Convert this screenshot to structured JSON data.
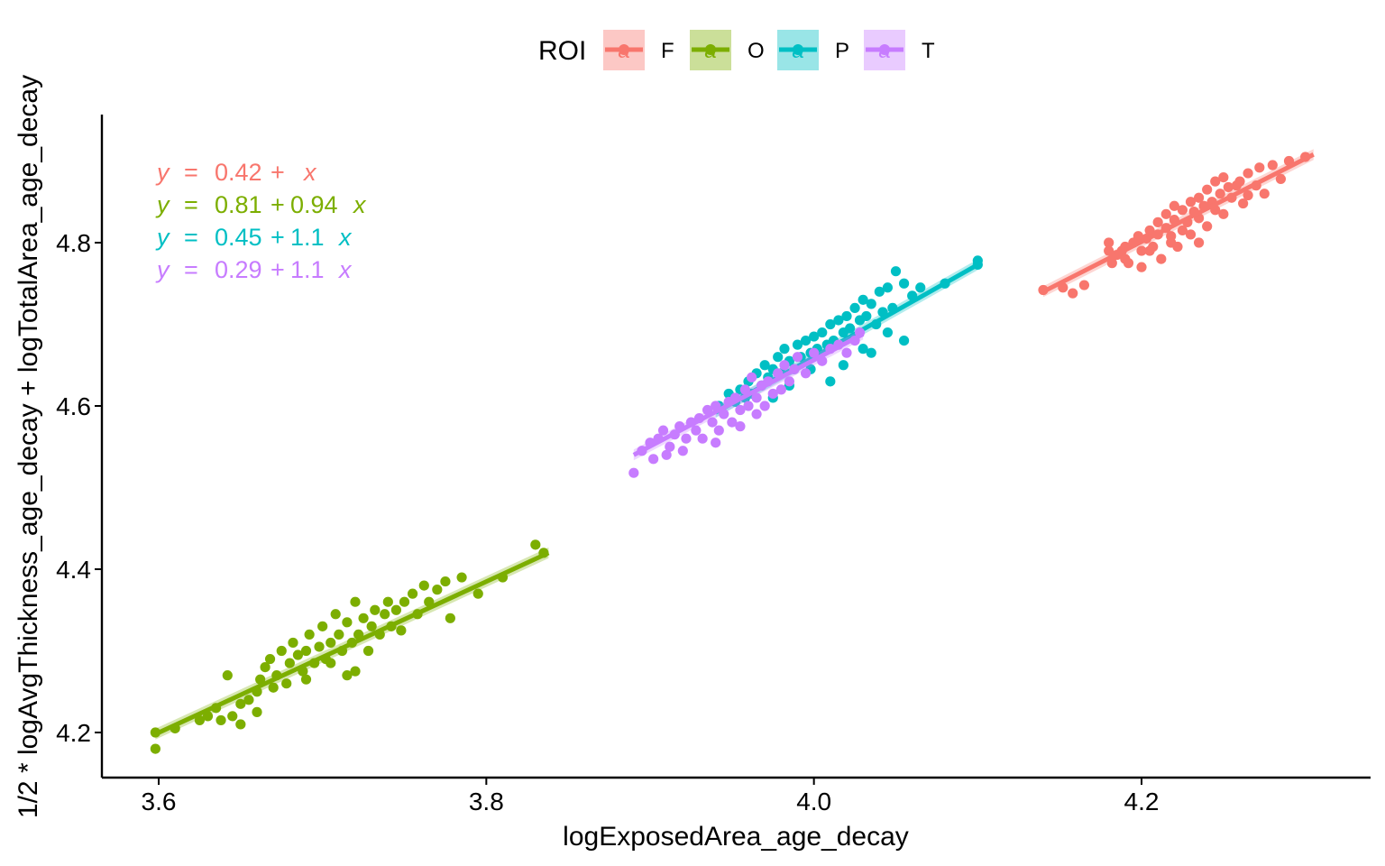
{
  "chart_data": {
    "type": "scatter",
    "title": "",
    "xlabel": "logExposedArea_age_decay",
    "ylabel": "1/2 * logAvgThickness_age_decay + logTotalArea_age_decay",
    "xlim": [
      3.56,
      4.34
    ],
    "ylim": [
      4.17,
      4.955
    ],
    "xticks": [
      "3.6",
      "3.8",
      "4.0",
      "4.2"
    ],
    "xtick_values": [
      3.6,
      3.8,
      4.0,
      4.2
    ],
    "yticks": [
      "4.2",
      "4.4",
      "4.6",
      "4.8"
    ],
    "ytick_values": [
      4.2,
      4.4,
      4.6,
      4.8
    ],
    "grid": false,
    "legend": {
      "title": "ROI",
      "position": "top",
      "key_glyph": "a",
      "entries": [
        "F",
        "O",
        "P",
        "T"
      ]
    },
    "equations": [
      {
        "roi": "F",
        "lhs": "y",
        "eq": "=",
        "intercept": "0.42",
        "plus": "+",
        "slope": "",
        "var": "x",
        "color": "#F8766D"
      },
      {
        "roi": "O",
        "lhs": "y",
        "eq": "=",
        "intercept": "0.81",
        "plus": "+",
        "slope": "0.94",
        "var": "x",
        "color": "#7CAE00"
      },
      {
        "roi": "P",
        "lhs": "y",
        "eq": "=",
        "intercept": "0.45",
        "plus": "+",
        "slope": "1.1",
        "var": "x",
        "color": "#00BFC4"
      },
      {
        "roi": "T",
        "lhs": "y",
        "eq": "=",
        "intercept": "0.29",
        "plus": "+",
        "slope": "1.1",
        "var": "x",
        "color": "#C77CFF"
      }
    ],
    "series": [
      {
        "name": "F",
        "color": "#F8766D",
        "fit": {
          "x0": 4.14,
          "y0": 4.74,
          "x1": 4.305,
          "y1": 4.908
        },
        "points": [
          [
            4.14,
            4.742
          ],
          [
            4.152,
            4.745
          ],
          [
            4.158,
            4.738
          ],
          [
            4.165,
            4.748
          ],
          [
            4.18,
            4.79
          ],
          [
            4.18,
            4.8
          ],
          [
            4.182,
            4.775
          ],
          [
            4.185,
            4.785
          ],
          [
            4.188,
            4.79
          ],
          [
            4.19,
            4.78
          ],
          [
            4.192,
            4.775
          ],
          [
            4.195,
            4.8
          ],
          [
            4.198,
            4.808
          ],
          [
            4.2,
            4.79
          ],
          [
            4.2,
            4.77
          ],
          [
            4.203,
            4.805
          ],
          [
            4.205,
            4.815
          ],
          [
            4.207,
            4.795
          ],
          [
            4.21,
            4.81
          ],
          [
            4.21,
            4.825
          ],
          [
            4.212,
            4.78
          ],
          [
            4.215,
            4.818
          ],
          [
            4.215,
            4.835
          ],
          [
            4.218,
            4.8
          ],
          [
            4.22,
            4.828
          ],
          [
            4.22,
            4.845
          ],
          [
            4.222,
            4.795
          ],
          [
            4.225,
            4.815
          ],
          [
            4.225,
            4.84
          ],
          [
            4.228,
            4.825
          ],
          [
            4.23,
            4.85
          ],
          [
            4.23,
            4.81
          ],
          [
            4.232,
            4.838
          ],
          [
            4.235,
            4.855
          ],
          [
            4.235,
            4.83
          ],
          [
            4.238,
            4.845
          ],
          [
            4.24,
            4.865
          ],
          [
            4.24,
            4.82
          ],
          [
            4.243,
            4.85
          ],
          [
            4.245,
            4.875
          ],
          [
            4.245,
            4.84
          ],
          [
            4.248,
            4.86
          ],
          [
            4.25,
            4.88
          ],
          [
            4.25,
            4.835
          ],
          [
            4.253,
            4.868
          ],
          [
            4.255,
            4.855
          ],
          [
            4.258,
            4.87
          ],
          [
            4.26,
            4.875
          ],
          [
            4.262,
            4.848
          ],
          [
            4.265,
            4.885
          ],
          [
            4.27,
            4.87
          ],
          [
            4.272,
            4.892
          ],
          [
            4.275,
            4.86
          ],
          [
            4.28,
            4.895
          ],
          [
            4.285,
            4.878
          ],
          [
            4.29,
            4.9
          ],
          [
            4.3,
            4.905
          ],
          [
            4.265,
            4.858
          ],
          [
            4.235,
            4.8
          ],
          [
            4.218,
            4.808
          ],
          [
            4.205,
            4.79
          ],
          [
            4.19,
            4.795
          ]
        ]
      },
      {
        "name": "O",
        "color": "#7CAE00",
        "fit": {
          "x0": 3.598,
          "y0": 4.198,
          "x1": 3.838,
          "y1": 4.42
        },
        "points": [
          [
            3.598,
            4.2
          ],
          [
            3.598,
            4.18
          ],
          [
            3.61,
            4.205
          ],
          [
            3.625,
            4.215
          ],
          [
            3.63,
            4.22
          ],
          [
            3.635,
            4.23
          ],
          [
            3.638,
            4.215
          ],
          [
            3.642,
            4.27
          ],
          [
            3.645,
            4.22
          ],
          [
            3.65,
            4.235
          ],
          [
            3.655,
            4.24
          ],
          [
            3.66,
            4.25
          ],
          [
            3.662,
            4.265
          ],
          [
            3.665,
            4.28
          ],
          [
            3.668,
            4.29
          ],
          [
            3.67,
            4.255
          ],
          [
            3.672,
            4.27
          ],
          [
            3.675,
            4.3
          ],
          [
            3.678,
            4.26
          ],
          [
            3.68,
            4.285
          ],
          [
            3.682,
            4.31
          ],
          [
            3.685,
            4.295
          ],
          [
            3.688,
            4.275
          ],
          [
            3.69,
            4.3
          ],
          [
            3.692,
            4.32
          ],
          [
            3.695,
            4.285
          ],
          [
            3.698,
            4.305
          ],
          [
            3.7,
            4.33
          ],
          [
            3.702,
            4.29
          ],
          [
            3.705,
            4.31
          ],
          [
            3.708,
            4.345
          ],
          [
            3.71,
            4.32
          ],
          [
            3.712,
            4.3
          ],
          [
            3.715,
            4.335
          ],
          [
            3.718,
            4.31
          ],
          [
            3.72,
            4.36
          ],
          [
            3.722,
            4.32
          ],
          [
            3.725,
            4.34
          ],
          [
            3.728,
            4.3
          ],
          [
            3.73,
            4.33
          ],
          [
            3.732,
            4.35
          ],
          [
            3.735,
            4.32
          ],
          [
            3.738,
            4.345
          ],
          [
            3.74,
            4.36
          ],
          [
            3.742,
            4.33
          ],
          [
            3.745,
            4.35
          ],
          [
            3.748,
            4.325
          ],
          [
            3.75,
            4.36
          ],
          [
            3.755,
            4.37
          ],
          [
            3.758,
            4.345
          ],
          [
            3.762,
            4.38
          ],
          [
            3.765,
            4.36
          ],
          [
            3.77,
            4.375
          ],
          [
            3.775,
            4.385
          ],
          [
            3.778,
            4.34
          ],
          [
            3.785,
            4.39
          ],
          [
            3.795,
            4.37
          ],
          [
            3.81,
            4.39
          ],
          [
            3.83,
            4.43
          ],
          [
            3.835,
            4.42
          ],
          [
            3.715,
            4.27
          ],
          [
            3.72,
            4.275
          ],
          [
            3.69,
            4.265
          ],
          [
            3.66,
            4.225
          ],
          [
            3.65,
            4.21
          ],
          [
            3.705,
            4.285
          ]
        ]
      },
      {
        "name": "P",
        "color": "#00BFC4",
        "fit": {
          "x0": 3.94,
          "y0": 4.592,
          "x1": 4.1,
          "y1": 4.773
        },
        "points": [
          [
            3.942,
            4.6
          ],
          [
            3.948,
            4.615
          ],
          [
            3.952,
            4.605
          ],
          [
            3.955,
            4.62
          ],
          [
            3.958,
            4.61
          ],
          [
            3.96,
            4.63
          ],
          [
            3.962,
            4.615
          ],
          [
            3.965,
            4.64
          ],
          [
            3.968,
            4.625
          ],
          [
            3.97,
            4.65
          ],
          [
            3.972,
            4.635
          ],
          [
            3.975,
            4.645
          ],
          [
            3.978,
            4.66
          ],
          [
            3.98,
            4.64
          ],
          [
            3.982,
            4.67
          ],
          [
            3.985,
            4.655
          ],
          [
            3.988,
            4.645
          ],
          [
            3.99,
            4.675
          ],
          [
            3.992,
            4.66
          ],
          [
            3.995,
            4.68
          ],
          [
            3.998,
            4.665
          ],
          [
            4.0,
            4.685
          ],
          [
            4.002,
            4.67
          ],
          [
            4.005,
            4.69
          ],
          [
            4.008,
            4.675
          ],
          [
            4.01,
            4.7
          ],
          [
            4.012,
            4.68
          ],
          [
            4.015,
            4.705
          ],
          [
            4.018,
            4.69
          ],
          [
            4.02,
            4.71
          ],
          [
            4.022,
            4.695
          ],
          [
            4.025,
            4.72
          ],
          [
            4.028,
            4.705
          ],
          [
            4.03,
            4.73
          ],
          [
            4.032,
            4.71
          ],
          [
            4.035,
            4.725
          ],
          [
            4.038,
            4.7
          ],
          [
            4.04,
            4.74
          ],
          [
            4.042,
            4.715
          ],
          [
            4.045,
            4.745
          ],
          [
            4.048,
            4.72
          ],
          [
            4.05,
            4.765
          ],
          [
            4.055,
            4.75
          ],
          [
            4.06,
            4.735
          ],
          [
            4.065,
            4.745
          ],
          [
            4.08,
            4.75
          ],
          [
            4.1,
            4.778
          ],
          [
            4.1,
            4.773
          ],
          [
            4.01,
            4.63
          ],
          [
            4.03,
            4.67
          ],
          [
            4.035,
            4.665
          ],
          [
            4.055,
            4.68
          ],
          [
            4.045,
            4.69
          ],
          [
            3.985,
            4.625
          ],
          [
            3.975,
            4.61
          ],
          [
            3.998,
            4.645
          ],
          [
            4.018,
            4.65
          ]
        ]
      },
      {
        "name": "T",
        "color": "#C77CFF",
        "fit": {
          "x0": 3.89,
          "y0": 4.54,
          "x1": 4.03,
          "y1": 4.688
        },
        "points": [
          [
            3.89,
            4.518
          ],
          [
            3.895,
            4.545
          ],
          [
            3.9,
            4.555
          ],
          [
            3.902,
            4.535
          ],
          [
            3.905,
            4.56
          ],
          [
            3.908,
            4.57
          ],
          [
            3.91,
            4.54
          ],
          [
            3.912,
            4.55
          ],
          [
            3.915,
            4.565
          ],
          [
            3.918,
            4.575
          ],
          [
            3.92,
            4.545
          ],
          [
            3.922,
            4.56
          ],
          [
            3.925,
            4.58
          ],
          [
            3.928,
            4.57
          ],
          [
            3.93,
            4.585
          ],
          [
            3.932,
            4.56
          ],
          [
            3.935,
            4.595
          ],
          [
            3.938,
            4.58
          ],
          [
            3.94,
            4.6
          ],
          [
            3.942,
            4.57
          ],
          [
            3.945,
            4.59
          ],
          [
            3.948,
            4.605
          ],
          [
            3.95,
            4.58
          ],
          [
            3.952,
            4.61
          ],
          [
            3.955,
            4.595
          ],
          [
            3.958,
            4.62
          ],
          [
            3.96,
            4.6
          ],
          [
            3.962,
            4.635
          ],
          [
            3.965,
            4.61
          ],
          [
            3.968,
            4.625
          ],
          [
            3.97,
            4.6
          ],
          [
            3.972,
            4.63
          ],
          [
            3.975,
            4.615
          ],
          [
            3.978,
            4.64
          ],
          [
            3.98,
            4.62
          ],
          [
            3.982,
            4.65
          ],
          [
            3.985,
            4.63
          ],
          [
            3.988,
            4.645
          ],
          [
            3.99,
            4.66
          ],
          [
            3.995,
            4.64
          ],
          [
            4.0,
            4.665
          ],
          [
            4.005,
            4.655
          ],
          [
            4.01,
            4.67
          ],
          [
            4.015,
            4.675
          ],
          [
            4.02,
            4.665
          ],
          [
            4.025,
            4.68
          ],
          [
            4.028,
            4.69
          ],
          [
            3.94,
            4.555
          ],
          [
            3.955,
            4.575
          ],
          [
            3.965,
            4.59
          ]
        ]
      }
    ]
  }
}
